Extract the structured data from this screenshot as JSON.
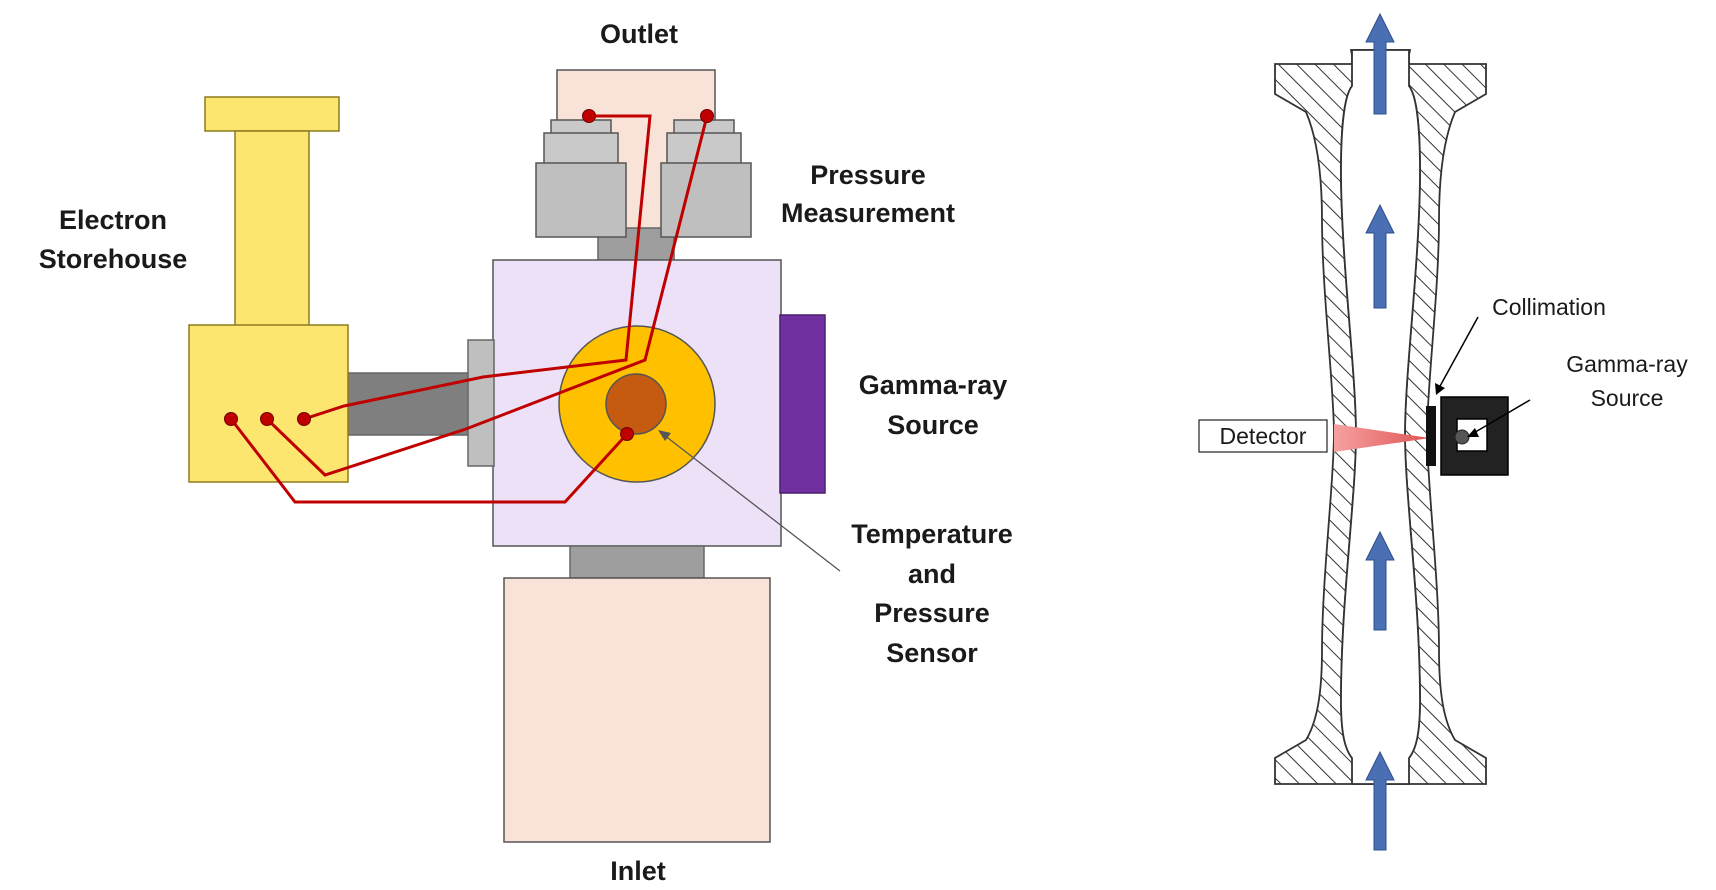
{
  "left_diagram": {
    "labels": {
      "outlet": "Outlet",
      "inlet": "Inlet",
      "electron_storehouse": [
        "Electron",
        "Storehouse"
      ],
      "pressure_measurement": [
        "Pressure",
        "Measurement"
      ],
      "gamma_ray_source": [
        "Gamma-ray",
        "Source"
      ],
      "temp_pressure_sensor": [
        "Temperature",
        "and",
        "Pressure",
        "Sensor"
      ]
    },
    "colors": {
      "yellow": "#fde66f",
      "yellow_stroke": "#8c7b1e",
      "peach": "#f9e2d7",
      "lavender": "#ece1f7",
      "gray": "#9e9e9e",
      "gray_dark": "#7f7f7f",
      "light_gray": "#c9c9c9",
      "purple": "#7030a0",
      "orange": "#ffc000",
      "orange_dark": "#c55a11",
      "wire": "#c00000"
    }
  },
  "right_diagram": {
    "labels": {
      "collimation": "Collimation",
      "gamma_ray_source": [
        "Gamma-ray",
        "Source"
      ],
      "detector": "Detector"
    },
    "colors": {
      "arrow": "#4a6fb3",
      "beam": "#f08080",
      "hatch": "#333333",
      "source_box": "#222222"
    }
  }
}
